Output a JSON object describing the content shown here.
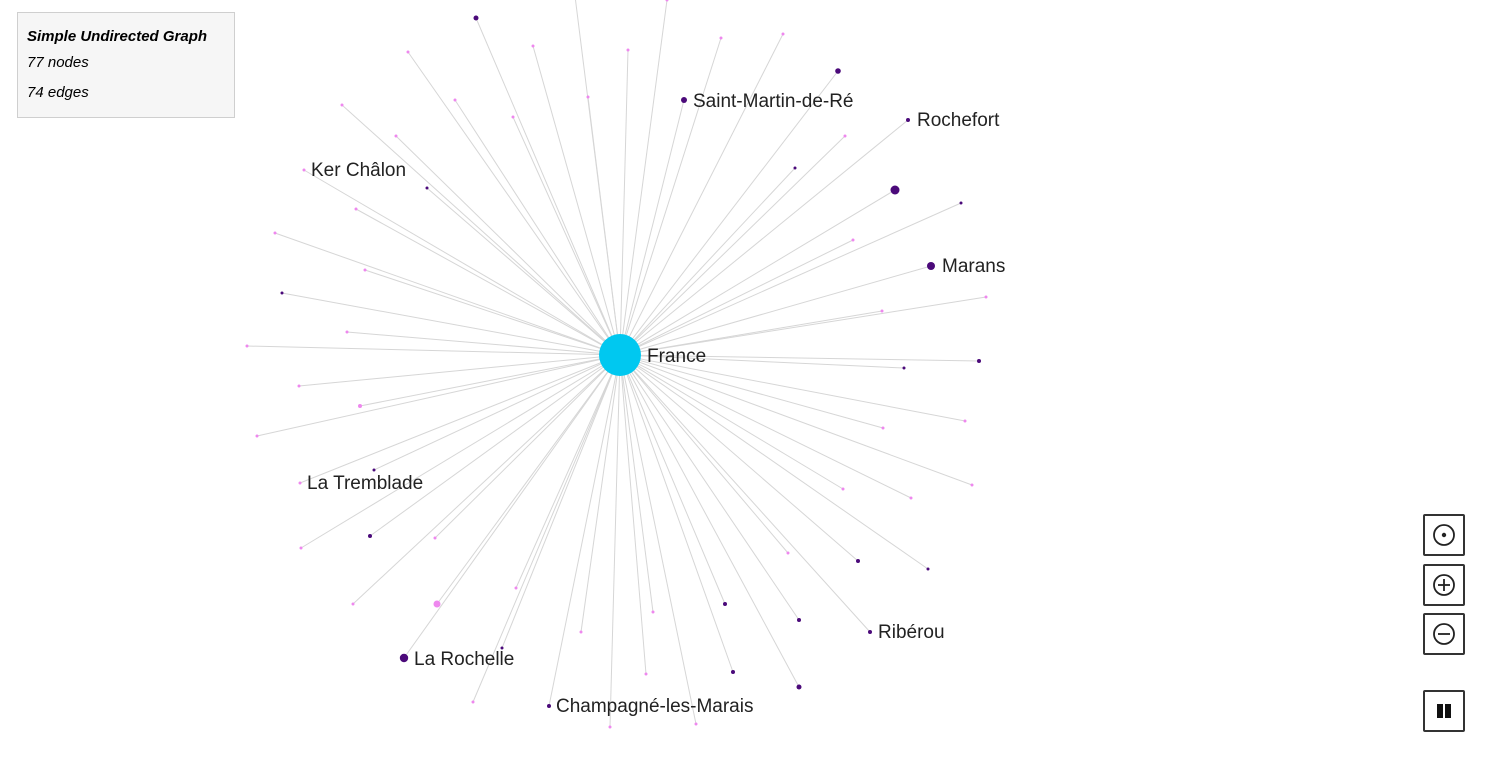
{
  "info": {
    "title": "Simple Undirected Graph",
    "nodes_text": "77 nodes",
    "edges_text": "74 edges"
  },
  "colors": {
    "hub": "#00c8f0",
    "dark_node": "#4b0a7a",
    "pink_node": "#ee88ee",
    "edge": "#d6d6d6"
  },
  "graph": {
    "hub": {
      "label": "France"
    },
    "labeled_nodes": [
      {
        "label": "Saint-Martin-de-Ré"
      },
      {
        "label": "Rochefort"
      },
      {
        "label": "Ker Châlon"
      },
      {
        "label": "Marans"
      },
      {
        "label": "La Tremblade"
      },
      {
        "label": "Ribérou"
      },
      {
        "label": "La Rochelle"
      },
      {
        "label": "Champagné-les-Marais"
      }
    ]
  },
  "controls": {
    "center_icon": "target-icon",
    "zoom_in_icon": "circle-plus-icon",
    "zoom_out_icon": "circle-minus-icon",
    "pause_icon": "pause-icon"
  }
}
